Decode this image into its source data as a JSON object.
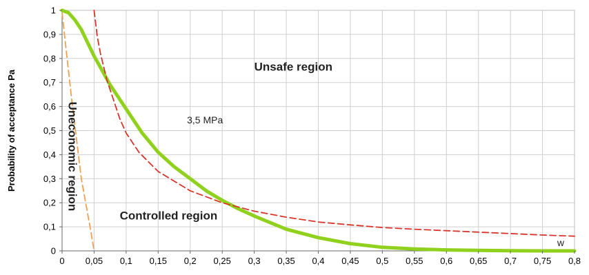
{
  "chart_data": {
    "type": "line",
    "title": "",
    "xlabel": "",
    "ylabel": "Probability of acceptance Pa",
    "xlim": [
      0,
      0.8
    ],
    "ylim": [
      0,
      1
    ],
    "grid": true,
    "x_ticks": [
      "0",
      "0,05",
      "0,1",
      "0,15",
      "0,2",
      "0,25",
      "0,3",
      "0,35",
      "0,4",
      "0,45",
      "0,5",
      "0,55",
      "0,6",
      "0,65",
      "0,7",
      "0,75",
      "0,8"
    ],
    "y_ticks": [
      "0",
      "0,1",
      "0,2",
      "0,3",
      "0,4",
      "0,5",
      "0,6",
      "0,7",
      "0,8",
      "0,9",
      "1"
    ],
    "series": [
      {
        "name": "",
        "style": "solid",
        "color": "#8fd11c",
        "x": [
          0,
          0.01,
          0.02,
          0.03,
          0.05,
          0.075,
          0.1,
          0.125,
          0.15,
          0.175,
          0.2,
          0.225,
          0.25,
          0.275,
          0.3,
          0.35,
          0.4,
          0.45,
          0.5,
          0.55,
          0.6,
          0.65,
          0.7,
          0.75,
          0.8
        ],
        "y": [
          1.0,
          0.99,
          0.96,
          0.92,
          0.81,
          0.69,
          0.59,
          0.49,
          0.41,
          0.35,
          0.3,
          0.25,
          0.21,
          0.175,
          0.145,
          0.09,
          0.055,
          0.03,
          0.015,
          0.008,
          0.004,
          0.002,
          0.001,
          0.0,
          0.0
        ]
      },
      {
        "name": "",
        "style": "dashed",
        "color": "#d9342b",
        "x": [
          0.05,
          0.055,
          0.06,
          0.07,
          0.08,
          0.09,
          0.1,
          0.12,
          0.15,
          0.2,
          0.25,
          0.3,
          0.35,
          0.4,
          0.45,
          0.5,
          0.55,
          0.6,
          0.65,
          0.7,
          0.75,
          0.8
        ],
        "y": [
          1.0,
          0.89,
          0.82,
          0.71,
          0.63,
          0.55,
          0.49,
          0.41,
          0.33,
          0.25,
          0.2,
          0.165,
          0.14,
          0.12,
          0.108,
          0.097,
          0.09,
          0.084,
          0.078,
          0.072,
          0.066,
          0.061
        ]
      },
      {
        "name": "",
        "style": "dashed",
        "color": "#f0a050",
        "x": [
          0,
          0.005,
          0.015,
          0.03,
          0.045,
          0.05
        ],
        "y": [
          0.99,
          0.87,
          0.63,
          0.3,
          0.08,
          0.0
        ]
      }
    ],
    "annotations": [
      {
        "text": "Unsafe region",
        "x": 0.3,
        "y": 0.75,
        "style": "bold"
      },
      {
        "text": "3,5 MPa",
        "x": 0.195,
        "y": 0.53,
        "style": "plain"
      },
      {
        "text": "Controlled region",
        "x": 0.09,
        "y": 0.13,
        "style": "bold"
      },
      {
        "text": "Uneconomic region",
        "x": 0.01,
        "y": 0.02,
        "style": "bold",
        "rotation": 90
      },
      {
        "text": "w",
        "x": 0.773,
        "y": 0.02,
        "style": "plain"
      }
    ]
  }
}
